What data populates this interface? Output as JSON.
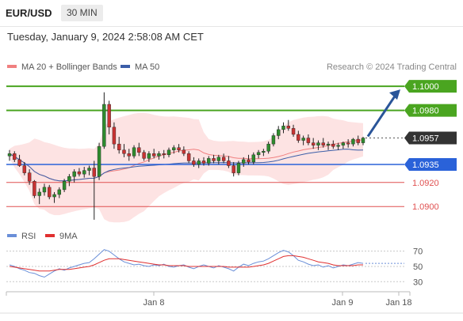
{
  "header": {
    "symbol": "EUR/USD",
    "timeframe": "30 MIN",
    "datetime": "Tuesday, January 9, 2024 2:58:08 AM CET"
  },
  "legend": {
    "ma20": "MA 20 + Bollinger Bands",
    "ma50": "MA 50",
    "source": "Research © 2024 Trading Central",
    "rsi": "RSI",
    "rsi_ma": "9MA"
  },
  "colors": {
    "ma20": "#f08080",
    "ma50": "#3b5ea8",
    "bands_fill": "#fde3e3",
    "resistance": "#4aa520",
    "support_blue": "#2a62d9",
    "support_red": "#e05050",
    "current": "#333333",
    "arrow": "#2a5599",
    "rsi_line": "#6a8fd8",
    "rsi_ma_line": "#e03030",
    "candle_up": "#2e8b2e",
    "candle_down": "#c83232"
  },
  "chart_data": [
    {
      "type": "candlestick",
      "title": "EUR/USD 30 MIN",
      "series_names": [
        "MA 20 + Bollinger Bands",
        "MA 50"
      ],
      "ylim": [
        1.0885,
        1.1008
      ],
      "x_ticks": [
        "Jan 8",
        "Jan 9",
        "Jan 18"
      ],
      "current_price": 1.0957,
      "levels": [
        {
          "value": 1.1,
          "label": "1.1000",
          "kind": "resistance"
        },
        {
          "value": 1.098,
          "label": "1.0980",
          "kind": "resistance"
        },
        {
          "value": 1.0957,
          "label": "1.0957",
          "kind": "current"
        },
        {
          "value": 1.0935,
          "label": "1.0935",
          "kind": "pivot"
        },
        {
          "value": 1.092,
          "label": "1.0920",
          "kind": "support"
        },
        {
          "value": 1.09,
          "label": "1.0900",
          "kind": "support"
        }
      ],
      "arrow": {
        "from": 1.0957,
        "to": 1.1
      },
      "candles": [
        [
          1.0942,
          1.0947,
          1.0938,
          1.0944
        ],
        [
          1.0944,
          1.0946,
          1.0937,
          1.0939
        ],
        [
          1.0939,
          1.0943,
          1.0933,
          1.0934
        ],
        [
          1.0934,
          1.0937,
          1.0926,
          1.0928
        ],
        [
          1.0928,
          1.0931,
          1.0918,
          1.0921
        ],
        [
          1.0921,
          1.0922,
          1.0907,
          1.0909
        ],
        [
          1.0909,
          1.0915,
          1.0902,
          1.0912
        ],
        [
          1.0912,
          1.0919,
          1.0909,
          1.0916
        ],
        [
          1.0916,
          1.0918,
          1.0906,
          1.0908
        ],
        [
          1.0908,
          1.0912,
          1.0903,
          1.091
        ],
        [
          1.091,
          1.0916,
          1.0907,
          1.0914
        ],
        [
          1.0914,
          1.0923,
          1.0912,
          1.0921
        ],
        [
          1.0921,
          1.0927,
          1.0917,
          1.0925
        ],
        [
          1.0925,
          1.0931,
          1.092,
          1.0929
        ],
        [
          1.0929,
          1.0932,
          1.0925,
          1.0927
        ],
        [
          1.0927,
          1.0933,
          1.0924,
          1.093
        ],
        [
          1.093,
          1.0934,
          1.0926,
          1.0932
        ],
        [
          1.0932,
          1.0938,
          1.0889,
          1.0925
        ],
        [
          1.0925,
          1.0953,
          1.0922,
          1.095
        ],
        [
          1.095,
          1.0995,
          1.0948,
          1.0985
        ],
        [
          1.0985,
          1.0988,
          1.096,
          1.0966
        ],
        [
          1.0966,
          1.097,
          1.0948,
          1.0952
        ],
        [
          1.0952,
          1.0958,
          1.0944,
          1.0947
        ],
        [
          1.0947,
          1.0952,
          1.0941,
          1.0944
        ],
        [
          1.0944,
          1.0948,
          1.0938,
          1.0942
        ],
        [
          1.0942,
          1.0951,
          1.094,
          1.0949
        ],
        [
          1.0949,
          1.0953,
          1.0942,
          1.0945
        ],
        [
          1.0945,
          1.0947,
          1.0938,
          1.094
        ],
        [
          1.094,
          1.0946,
          1.0937,
          1.0944
        ],
        [
          1.0944,
          1.0948,
          1.094,
          1.0942
        ],
        [
          1.0942,
          1.0946,
          1.0939,
          1.0944
        ],
        [
          1.0944,
          1.0947,
          1.094,
          1.0943
        ],
        [
          1.0943,
          1.0949,
          1.0941,
          1.0947
        ],
        [
          1.0947,
          1.0951,
          1.0944,
          1.0949
        ],
        [
          1.0949,
          1.0952,
          1.0945,
          1.0947
        ],
        [
          1.0947,
          1.095,
          1.0942,
          1.0944
        ],
        [
          1.0944,
          1.0946,
          1.0936,
          1.0938
        ],
        [
          1.0938,
          1.0941,
          1.0933,
          1.0935
        ],
        [
          1.0935,
          1.094,
          1.0932,
          1.0938
        ],
        [
          1.0938,
          1.0941,
          1.0934,
          1.0936
        ],
        [
          1.0936,
          1.0942,
          1.0934,
          1.094
        ],
        [
          1.094,
          1.0943,
          1.0936,
          1.0938
        ],
        [
          1.0938,
          1.0943,
          1.0935,
          1.0941
        ],
        [
          1.0941,
          1.0944,
          1.0936,
          1.0938
        ],
        [
          1.0938,
          1.0942,
          1.0932,
          1.0934
        ],
        [
          1.0934,
          1.0937,
          1.0925,
          1.0928
        ],
        [
          1.0928,
          1.0938,
          1.0926,
          1.0936
        ],
        [
          1.0936,
          1.0941,
          1.0933,
          1.0939
        ],
        [
          1.0939,
          1.0943,
          1.0935,
          1.0937
        ],
        [
          1.0937,
          1.0945,
          1.0935,
          1.0943
        ],
        [
          1.0943,
          1.0947,
          1.094,
          1.0945
        ],
        [
          1.0945,
          1.0948,
          1.0942,
          1.0946
        ],
        [
          1.0946,
          1.0954,
          1.0944,
          1.0952
        ],
        [
          1.0952,
          1.0961,
          1.095,
          1.0959
        ],
        [
          1.0959,
          1.0967,
          1.0956,
          1.0964
        ],
        [
          1.0964,
          1.097,
          1.0961,
          1.0967
        ],
        [
          1.0967,
          1.0972,
          1.0963,
          1.0965
        ],
        [
          1.0965,
          1.0968,
          1.0958,
          1.096
        ],
        [
          1.096,
          1.0963,
          1.0953,
          1.0955
        ],
        [
          1.0955,
          1.0959,
          1.0951,
          1.0957
        ],
        [
          1.0957,
          1.096,
          1.0951,
          1.0953
        ],
        [
          1.0953,
          1.0957,
          1.0948,
          1.0951
        ],
        [
          1.0951,
          1.0955,
          1.0947,
          1.0953
        ],
        [
          1.0953,
          1.0957,
          1.0949,
          1.0951
        ],
        [
          1.0951,
          1.0954,
          1.0947,
          1.0952
        ],
        [
          1.0952,
          1.0955,
          1.0948,
          1.095
        ],
        [
          1.095,
          1.0953,
          1.0947,
          1.0951
        ],
        [
          1.0951,
          1.0954,
          1.0948,
          1.0953
        ],
        [
          1.0953,
          1.0956,
          1.0949,
          1.0952
        ],
        [
          1.0952,
          1.0957,
          1.095,
          1.0956
        ],
        [
          1.0956,
          1.0959,
          1.0951,
          1.0953
        ],
        [
          1.0953,
          1.0958,
          1.0951,
          1.0957
        ]
      ]
    },
    {
      "type": "line",
      "title": "RSI",
      "series_names": [
        "RSI",
        "9MA"
      ],
      "ylim": [
        22,
        80
      ],
      "y_ticks": [
        70,
        50,
        30
      ],
      "rsi": [
        52,
        50,
        47,
        45,
        42,
        41,
        38,
        36,
        40,
        44,
        47,
        45,
        48,
        50,
        52,
        54,
        55,
        60,
        66,
        72,
        70,
        65,
        60,
        56,
        54,
        52,
        53,
        51,
        50,
        52,
        51,
        53,
        50,
        49,
        51,
        52,
        49,
        47,
        50,
        52,
        50,
        48,
        51,
        49,
        47,
        44,
        49,
        53,
        51,
        54,
        56,
        57,
        60,
        64,
        68,
        71,
        69,
        64,
        58,
        56,
        53,
        51,
        52,
        49,
        51,
        48,
        50,
        52,
        51,
        53,
        55,
        54
      ],
      "rsi_ma": [
        50,
        49,
        48,
        47,
        46,
        45,
        44,
        44,
        44,
        45,
        46,
        46,
        46,
        47,
        48,
        49,
        50,
        52,
        55,
        58,
        60,
        60,
        60,
        59,
        58,
        57,
        56,
        55,
        54,
        53,
        52,
        52,
        51,
        51,
        51,
        51,
        50,
        50,
        50,
        50,
        50,
        50,
        50,
        50,
        49,
        49,
        49,
        49,
        49,
        50,
        51,
        52,
        54,
        57,
        60,
        63,
        64,
        64,
        63,
        62,
        60,
        58,
        56,
        55,
        54,
        52,
        51,
        51,
        51,
        51,
        52,
        52
      ]
    }
  ]
}
